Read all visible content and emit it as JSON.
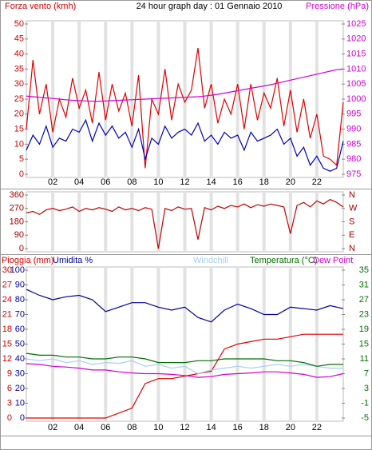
{
  "chart_data": [
    {
      "type": "line",
      "title": "24 hour graph day : 01 Gennaio 2010",
      "y_label": "Forza vento (kmh)",
      "y2_label": "Pressione (hPa)",
      "x": [
        0,
        0.5,
        1,
        1.5,
        2,
        2.5,
        3,
        3.5,
        4,
        4.5,
        5,
        5.5,
        6,
        6.5,
        7,
        7.5,
        8,
        8.5,
        9,
        9.5,
        10,
        10.5,
        11,
        11.5,
        12,
        12.5,
        13,
        13.5,
        14,
        14.5,
        15,
        15.5,
        16,
        16.5,
        17,
        17.5,
        18,
        18.5,
        19,
        19.5,
        20,
        20.5,
        21,
        21.5,
        22,
        22.5,
        23,
        23.5,
        24
      ],
      "xlim": [
        0,
        24
      ],
      "xticks": [
        {
          "value": 2,
          "label": "02"
        },
        {
          "value": 4,
          "label": "04"
        },
        {
          "value": 6,
          "label": "06"
        },
        {
          "value": 8,
          "label": "08"
        },
        10,
        12,
        14,
        16,
        18,
        20,
        22
      ],
      "ylim": [
        0,
        50
      ],
      "yticks": [
        0,
        5,
        10,
        15,
        20,
        25,
        30,
        35,
        40,
        45,
        50
      ],
      "y2lim": [
        975,
        1025
      ],
      "y2ticks": [
        975,
        980,
        985,
        990,
        995,
        1000,
        1005,
        1010,
        1015,
        1020,
        1025
      ],
      "grid": true,
      "series": [
        {
          "color": "#e00000",
          "values": [
            15,
            38,
            20,
            30,
            14,
            25,
            19,
            32,
            22,
            28,
            17,
            34,
            18,
            30,
            21,
            27,
            16,
            33,
            2,
            25,
            20,
            35,
            18,
            30,
            24,
            28,
            42,
            22,
            30,
            17,
            25,
            20,
            30,
            15,
            30,
            18,
            27,
            22,
            32,
            16,
            28,
            14,
            25,
            12,
            20,
            6,
            5,
            3,
            24
          ]
        },
        {
          "color": "#0000c0",
          "values": [
            8,
            13,
            10,
            16,
            9,
            12,
            11,
            15,
            14,
            18,
            11,
            17,
            13,
            16,
            12,
            14,
            9,
            15,
            5,
            12,
            10,
            16,
            12,
            14,
            15,
            13,
            17,
            11,
            13,
            10,
            14,
            12,
            13,
            8,
            14,
            11,
            12,
            13,
            15,
            10,
            12,
            6,
            9,
            3,
            6,
            2,
            1,
            2,
            11
          ]
        },
        {
          "color": "#d000d0",
          "axis": "y2",
          "values": [
            1001,
            1000.8,
            1000.6,
            1000.4,
            1000.2,
            1000,
            999.8,
            999.6,
            999.5,
            999.4,
            999.3,
            999.3,
            999.4,
            999.5,
            999.6,
            999.7,
            999.8,
            999.9,
            1000,
            1000.1,
            1000.2,
            1000.3,
            1000.4,
            1000.5,
            1000.6,
            1000.7,
            1000.8,
            1001,
            1001.3,
            1001.6,
            1002,
            1002.4,
            1002.8,
            1003.2,
            1003.6,
            1004,
            1004.4,
            1004.8,
            1005.3,
            1005.8,
            1006.3,
            1006.8,
            1007.3,
            1007.8,
            1008.3,
            1008.8,
            1009.3,
            1009.8,
            1010
          ]
        }
      ]
    },
    {
      "type": "line",
      "x": [
        0,
        0.5,
        1,
        1.5,
        2,
        2.5,
        3,
        3.5,
        4,
        4.5,
        5,
        5.5,
        6,
        6.5,
        7,
        7.5,
        8,
        8.5,
        9,
        9.5,
        10,
        10.5,
        11,
        11.5,
        12,
        12.5,
        13,
        13.5,
        14,
        14.5,
        15,
        15.5,
        16,
        16.5,
        17,
        17.5,
        18,
        18.5,
        19,
        19.5,
        20,
        20.5,
        21,
        21.5,
        22,
        22.5,
        23,
        23.5,
        24
      ],
      "xlim": [
        0,
        24
      ],
      "ylim": [
        0,
        360
      ],
      "yticks": [
        0,
        90,
        180,
        270,
        360
      ],
      "y2lim": [
        0,
        360
      ],
      "y2ticks": [
        {
          "value": 0,
          "label": "N"
        },
        {
          "value": 90,
          "label": "E"
        },
        {
          "value": 180,
          "label": "S"
        },
        {
          "value": 270,
          "label": "W"
        },
        {
          "value": 360,
          "label": "N"
        }
      ],
      "grid": true,
      "series": [
        {
          "color": "#c00000",
          "values": [
            240,
            250,
            230,
            260,
            270,
            255,
            265,
            280,
            250,
            270,
            260,
            275,
            265,
            250,
            280,
            260,
            270,
            255,
            275,
            265,
            0,
            270,
            255,
            280,
            265,
            270,
            60,
            275,
            260,
            285,
            270,
            290,
            280,
            300,
            275,
            295,
            285,
            300,
            290,
            280,
            100,
            290,
            310,
            280,
            320,
            300,
            330,
            310,
            280
          ]
        }
      ]
    },
    {
      "type": "line",
      "x": [
        0,
        1,
        2,
        3,
        4,
        5,
        6,
        7,
        8,
        9,
        10,
        11,
        12,
        13,
        14,
        15,
        16,
        17,
        18,
        19,
        20,
        21,
        22,
        23,
        24
      ],
      "xlim": [
        0,
        24
      ],
      "xticks": [
        {
          "value": 2,
          "label": "02"
        },
        {
          "value": 4,
          "label": "04"
        },
        {
          "value": 6,
          "label": "06"
        },
        {
          "value": 8,
          "label": "08"
        },
        10,
        12,
        14,
        16,
        18,
        20,
        22
      ],
      "ylim": [
        0,
        100
      ],
      "yticks": [
        0,
        10,
        20,
        30,
        40,
        50,
        60,
        70,
        80,
        90,
        100
      ],
      "y2lim": [
        -5,
        35
      ],
      "y2ticks": [
        -5,
        -1,
        3,
        7,
        11,
        15,
        19,
        23,
        27,
        31,
        35
      ],
      "y3lim": [
        0,
        30
      ],
      "y3ticks": [
        0,
        3,
        6,
        9,
        12,
        15,
        18,
        21,
        24,
        27,
        30
      ],
      "grid": true,
      "series": [
        {
          "name": "Pioggia (mm)",
          "color": "#e00000",
          "axis": "y3",
          "values": [
            0,
            0,
            0,
            0,
            0,
            0,
            0,
            1,
            2,
            7,
            8,
            8,
            8.5,
            9,
            9.5,
            14,
            15,
            15.5,
            16,
            16,
            16.5,
            17,
            17,
            17,
            17
          ]
        },
        {
          "name": "Umidita %",
          "color": "#0000a0",
          "values": [
            87,
            83,
            80,
            82,
            83,
            80,
            72,
            75,
            78,
            78,
            75,
            73,
            75,
            68,
            65,
            73,
            77,
            74,
            70,
            70,
            75,
            74,
            73,
            76,
            74
          ]
        },
        {
          "name": "Windchill",
          "color": "#a8cef0",
          "axis": "y2",
          "values": [
            11,
            10.5,
            11,
            10,
            10.5,
            9.5,
            10,
            9.8,
            10.5,
            9,
            9.5,
            8.5,
            9,
            7,
            8,
            8.5,
            9,
            8.5,
            9,
            9.5,
            9,
            9.5,
            9,
            8.5,
            8.5
          ]
        },
        {
          "name": "Temperatura (°C)",
          "color": "#007000",
          "axis": "y2",
          "values": [
            12.5,
            12,
            12,
            11.5,
            11.5,
            11,
            11,
            11.5,
            11.5,
            11,
            10,
            10,
            10,
            10.5,
            10.5,
            11,
            11,
            11,
            11,
            10.5,
            10.5,
            10,
            9,
            9.5,
            9.5
          ]
        },
        {
          "name": "Dew Point",
          "color": "#d000d0",
          "axis": "y2",
          "values": [
            9.7,
            9.5,
            9,
            8.8,
            8.5,
            8,
            8,
            7.5,
            7.2,
            7,
            7,
            6.8,
            6.5,
            6,
            6.2,
            6.8,
            7,
            7.2,
            7.5,
            7.5,
            7.2,
            6.8,
            6,
            6.2,
            7
          ]
        }
      ]
    }
  ]
}
